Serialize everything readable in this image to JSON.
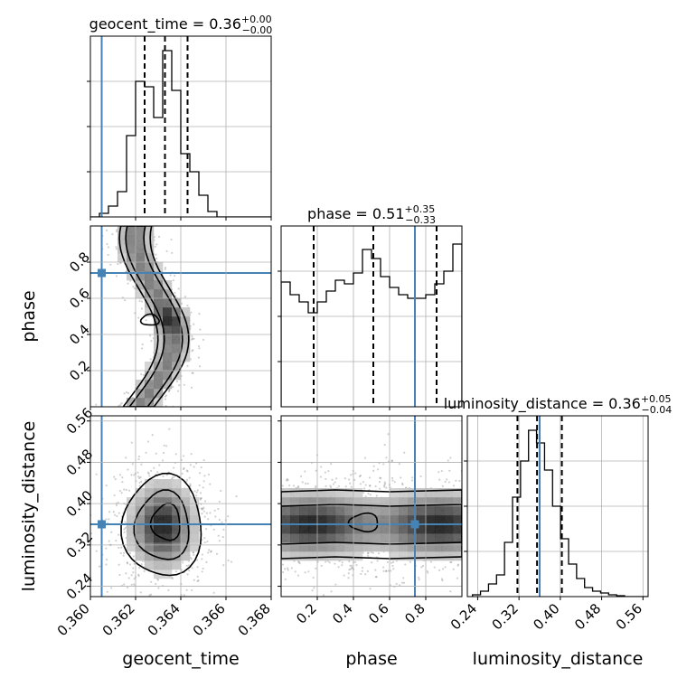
{
  "chart_data": {
    "type": "corner",
    "truth_color": "#4682b4",
    "parameters": [
      {
        "name": "geocent_time",
        "label": "geocent_time",
        "title": {
          "prefix": "geocent_time = ",
          "median": "0.36",
          "plus": "+0.00",
          "minus": "−0.00"
        },
        "range": [
          0.36,
          0.368
        ],
        "ticks": [
          0.36,
          0.362,
          0.364,
          0.366,
          0.368
        ],
        "tick_labels": [
          "0.360",
          "0.362",
          "0.364",
          "0.366",
          "0.368"
        ],
        "truth": 0.3605,
        "quantiles": [
          0.3624,
          0.3633,
          0.3643
        ],
        "hist_edges": [
          0.36,
          0.3604,
          0.3608,
          0.3612,
          0.3616,
          0.362,
          0.3624,
          0.3628,
          0.3632,
          0.3636,
          0.364,
          0.3644,
          0.3648,
          0.3652,
          0.3656,
          0.366,
          0.3664,
          0.3668,
          0.3672,
          0.3676,
          0.368
        ],
        "hist_counts": [
          0,
          0.02,
          0.06,
          0.14,
          0.45,
          0.75,
          0.72,
          0.55,
          0.92,
          0.7,
          0.35,
          0.25,
          0.12,
          0.03,
          0,
          0,
          0,
          0,
          0,
          0
        ],
        "hist_ylim": [
          0,
          1
        ]
      },
      {
        "name": "phase",
        "label": "phase",
        "title": {
          "prefix": "phase = ",
          "median": "0.51",
          "plus": "+0.35",
          "minus": "−0.33"
        },
        "range": [
          0.0,
          1.0
        ],
        "ticks": [
          0.2,
          0.4,
          0.6,
          0.8
        ],
        "tick_labels": [
          "0.2",
          "0.4",
          "0.6",
          "0.8"
        ],
        "truth": 0.74,
        "quantiles": [
          0.18,
          0.51,
          0.86
        ],
        "hist_edges": [
          0.0,
          0.05,
          0.1,
          0.15,
          0.2,
          0.25,
          0.3,
          0.35,
          0.4,
          0.45,
          0.5,
          0.55,
          0.6,
          0.65,
          0.7,
          0.75,
          0.8,
          0.85,
          0.9,
          0.95,
          1.0
        ],
        "hist_counts": [
          0.69,
          0.62,
          0.58,
          0.52,
          0.58,
          0.64,
          0.7,
          0.68,
          0.74,
          0.87,
          0.82,
          0.72,
          0.66,
          0.62,
          0.6,
          0.6,
          0.62,
          0.68,
          0.75,
          0.9
        ],
        "hist_ylim": [
          0,
          1
        ]
      },
      {
        "name": "luminosity_distance",
        "label": "luminosity_distance",
        "title": {
          "prefix": "luminosity_distance = ",
          "median": "0.36",
          "plus": "+0.05",
          "minus": "−0.04"
        },
        "range": [
          0.22,
          0.57
        ],
        "ticks": [
          0.24,
          0.32,
          0.4,
          0.48,
          0.56
        ],
        "tick_labels": [
          "0.24",
          "0.32",
          "0.40",
          "0.48",
          "0.56"
        ],
        "truth": 0.36,
        "quantiles": [
          0.317,
          0.355,
          0.403
        ],
        "hist_edges": [
          0.23,
          0.2455,
          0.261,
          0.2765,
          0.292,
          0.3075,
          0.323,
          0.3385,
          0.354,
          0.3695,
          0.385,
          0.4005,
          0.416,
          0.4315,
          0.447,
          0.4625,
          0.478,
          0.4935,
          0.509,
          0.5245,
          0.54,
          0.555,
          0.57
        ],
        "hist_counts": [
          0.01,
          0.03,
          0.07,
          0.12,
          0.3,
          0.55,
          0.75,
          0.92,
          0.85,
          0.7,
          0.5,
          0.32,
          0.18,
          0.1,
          0.05,
          0.03,
          0.02,
          0.01,
          0.005,
          0,
          0,
          0
        ],
        "hist_ylim": [
          0,
          1
        ]
      }
    ],
    "panels_2d": [
      {
        "x": "geocent_time",
        "y": "phase",
        "truth_point": [
          0.3605,
          0.74
        ]
      },
      {
        "x": "geocent_time",
        "y": "luminosity_distance",
        "truth_point": [
          0.3605,
          0.36
        ]
      },
      {
        "x": "phase",
        "y": "luminosity_distance",
        "truth_point": [
          0.74,
          0.36
        ]
      }
    ]
  }
}
